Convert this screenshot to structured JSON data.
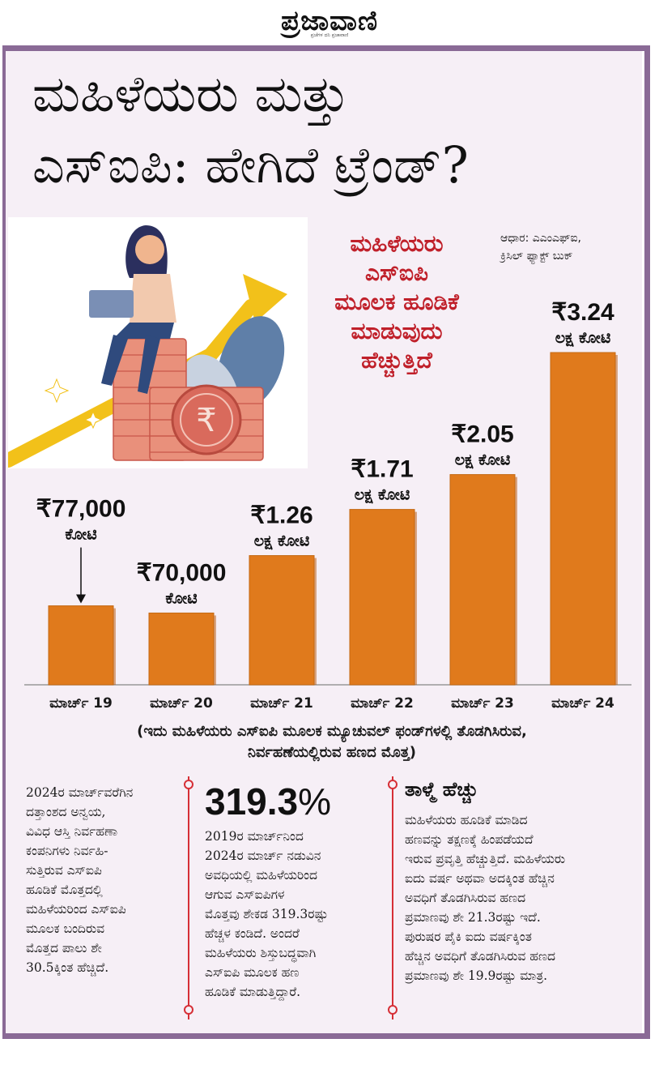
{
  "masthead": {
    "name": "ಪ್ರಜಾವಾಣಿ",
    "tagline": "ಪ್ರಜೆಗಳ ದನಿ ಪ್ರಜಾವಾಣಿ"
  },
  "title_line1": "ಮಹಿಳೆಯರು ಮತ್ತು",
  "title_line2": "ಎಸ್‌ಐಪಿ: ಹೇಗಿದೆ ಟ್ರೆಂಡ್?",
  "source": [
    "ಆಧಾರ: ಎಎಂಎಫ್ಐ,",
    "ಕ್ರಿಸಿಲ್ ಫ್ಯಾಕ್ಟ್ ಬುಕ್"
  ],
  "headline": [
    "ಮಹಿಳೆಯರು",
    "ಎಸ್‌ಐಪಿ",
    "ಮೂಲಕ ಹೂಡಿಕೆ",
    "ಮಾಡುವುದು",
    "ಹೆಚ್ಚುತ್ತಿದೆ"
  ],
  "colors": {
    "bar": "#e07a1c",
    "bar_dark": "#b85a10",
    "frame": "#8a6a96",
    "panel": "#f6eff6",
    "accent": "#d62f36"
  },
  "chart_data": {
    "type": "bar",
    "categories": [
      "ಮಾರ್ಚ್ 19",
      "ಮಾರ್ಚ್ 20",
      "ಮಾರ್ಚ್ 21",
      "ಮಾರ್ಚ್ 22",
      "ಮಾರ್ಚ್ 23",
      "ಮಾರ್ಚ್ 24"
    ],
    "values": [
      0.77,
      0.7,
      1.26,
      1.71,
      2.05,
      3.24
    ],
    "value_labels": [
      {
        "amount": "₹77,000",
        "unit": "ಕೋಟಿ"
      },
      {
        "amount": "₹70,000",
        "unit": "ಕೋಟಿ"
      },
      {
        "amount": "₹1.26",
        "unit": "ಲಕ್ಷ ಕೋಟಿ"
      },
      {
        "amount": "₹1.71",
        "unit": "ಲಕ್ಷ ಕೋಟಿ"
      },
      {
        "amount": "₹2.05",
        "unit": "ಲಕ್ಷ ಕೋಟಿ"
      },
      {
        "amount": "₹3.24",
        "unit": "ಲಕ್ಷ ಕೋಟಿ"
      }
    ],
    "ylim": [
      0,
      3.24
    ],
    "title": "",
    "xlabel": "",
    "ylabel": "",
    "grid": false
  },
  "caption": [
    "(ಇದು ಮಹಿಳೆಯರು ಎಸ್‌ಐಪಿ ಮೂಲಕ ಮ್ಯೂಚುವಲ್ ಫಂಡ್‌ಗಳಲ್ಲಿ ತೊಡಗಿಸಿರುವ,",
    "ನಿರ್ವಹಣೆಯಲ್ಲಿರುವ ಹಣದ ಮೊತ್ತ)"
  ],
  "col1": [
    "2024ರ ಮಾರ್ಚ್‌ವರೆಗಿನ",
    "ದತ್ತಾಂಶದ ಅನ್ವಯ,",
    "ವಿವಿಧ ಆಸ್ತಿ ನಿರ್ವಹಣಾ",
    "ಕಂಪನಿಗಳು ನಿರ್ವಹಿ-",
    "ಸುತ್ತಿರುವ ಎಸ್‌ಐಪಿ",
    "ಹೂಡಿಕೆ ಮೊತ್ತದಲ್ಲಿ",
    "ಮಹಿಳೆಯರಿಂದ ಎಸ್‌ಐಪಿ",
    "ಮೂಲಕ ಬಂದಿರುವ",
    "ಮೊತ್ತದ ಪಾಲು ಶೇ",
    "30.5ಕ್ಕಿಂತ ಹೆಚ್ಚಿದೆ."
  ],
  "col2": {
    "big_number": "319.3",
    "big_unit": "%",
    "lines": [
      "2019ರ ಮಾರ್ಚ್‌ನಿಂದ",
      "2024ರ ಮಾರ್ಚ್ ನಡುವಿನ",
      "ಅವಧಿಯಲ್ಲಿ ಮಹಿಳೆಯರಿಂದ",
      "ಆಗುವ ಎಸ್‌ಐಪಿಗಳ",
      "ಮೊತ್ತವು ಶೇಕಡ 319.3ರಷ್ಟು",
      "ಹೆಚ್ಚಳ ಕಂಡಿದೆ. ಅಂದರೆ",
      "ಮಹಿಳೆಯರು ಶಿಸ್ತುಬದ್ಧವಾಗಿ",
      "ಎಸ್‌ಐಪಿ ಮೂಲಕ ಹಣ",
      "ಹೂಡಿಕೆ ಮಾಡುತ್ತಿದ್ದಾರೆ."
    ]
  },
  "col3": {
    "heading": "ತಾಳ್ಮೆ ಹೆಚ್ಚು",
    "lines": [
      "ಮಹಿಳೆಯರು ಹೂಡಿಕೆ ಮಾಡಿದ",
      "ಹಣವನ್ನು ತಕ್ಷಣಕ್ಕೆ ಹಿಂಪಡೆಯದೆ",
      "ಇರುವ ಪ್ರವೃತ್ತಿ ಹೆಚ್ಚುತ್ತಿದೆ. ಮಹಿಳೆಯರು",
      "ಐದು ವರ್ಷ ಅಥವಾ ಅದಕ್ಕಿಂತ ಹೆಚ್ಚಿನ",
      "ಅವಧಿಗೆ ತೊಡಗಿಸಿರುವ ಹಣದ",
      "ಪ್ರಮಾಣವು ಶೇ 21.3ರಷ್ಟು ಇದೆ.",
      "ಪುರುಷರ ಪೈಕಿ ಐದು ವರ್ಷಕ್ಕಿಂತ",
      "ಹೆಚ್ಚಿನ ಅವಧಿಗೆ ತೊಡಗಿಸಿರುವ ಹಣದ",
      "ಪ್ರಮಾಣವು ಶೇ 19.9ರಷ್ಟು ಮಾತ್ರ."
    ]
  }
}
